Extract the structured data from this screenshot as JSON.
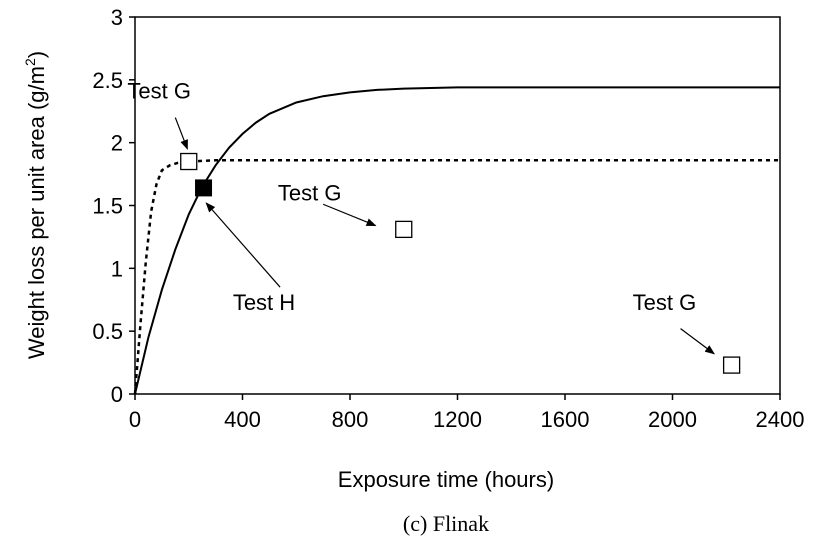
{
  "chart_data": {
    "type": "scatter",
    "caption": "(c) Flinak",
    "xlabel": "Exposure time (hours)",
    "ylabel": "Weight loss per unit area (g/m",
    "ylabel_sup": "2",
    "ylabel_end": ")",
    "xlim": [
      0,
      2400
    ],
    "ylim": [
      0,
      3
    ],
    "xticks": [
      0,
      400,
      800,
      1200,
      1600,
      2000,
      2400
    ],
    "yticks": [
      0,
      0.5,
      1,
      1.5,
      2,
      2.5,
      3
    ],
    "ytick_labels": [
      "0",
      "0.5",
      "1",
      "1.5",
      "2",
      "2.5",
      "3"
    ],
    "grid": false,
    "legend": "none",
    "series": [
      {
        "style": "solid-line",
        "points": [
          [
            0,
            0
          ],
          [
            50,
            0.45
          ],
          [
            100,
            0.83
          ],
          [
            150,
            1.15
          ],
          [
            200,
            1.43
          ],
          [
            250,
            1.65
          ],
          [
            300,
            1.82
          ],
          [
            350,
            1.96
          ],
          [
            400,
            2.07
          ],
          [
            450,
            2.16
          ],
          [
            500,
            2.23
          ],
          [
            600,
            2.32
          ],
          [
            700,
            2.37
          ],
          [
            800,
            2.4
          ],
          [
            900,
            2.42
          ],
          [
            1000,
            2.43
          ],
          [
            1200,
            2.44
          ],
          [
            1600,
            2.44
          ],
          [
            2000,
            2.44
          ],
          [
            2400,
            2.44
          ]
        ]
      },
      {
        "style": "dashed-line",
        "points": [
          [
            0,
            0
          ],
          [
            20,
            0.55
          ],
          [
            40,
            1.05
          ],
          [
            60,
            1.45
          ],
          [
            80,
            1.67
          ],
          [
            100,
            1.78
          ],
          [
            130,
            1.82
          ],
          [
            160,
            1.84
          ],
          [
            200,
            1.85
          ],
          [
            300,
            1.86
          ],
          [
            2400,
            1.86
          ]
        ]
      },
      {
        "style": "open-square-markers",
        "points": [
          [
            200,
            1.85
          ],
          [
            1000,
            1.31
          ],
          [
            2220,
            0.23
          ]
        ]
      },
      {
        "style": "filled-square-markers",
        "points": [
          [
            255,
            1.64
          ]
        ]
      }
    ],
    "annotations": [
      {
        "text": "Test G",
        "label_at": [
          90,
          2.35
        ],
        "arrow_from": [
          150,
          2.2
        ],
        "arrow_to": [
          195,
          1.95
        ]
      },
      {
        "text": "Test G",
        "label_at": [
          650,
          1.54
        ],
        "arrow_from": [
          700,
          1.51
        ],
        "arrow_to": [
          895,
          1.34
        ]
      },
      {
        "text": "Test H",
        "label_at": [
          480,
          0.67
        ],
        "arrow_from": [
          540,
          0.85
        ],
        "arrow_to": [
          265,
          1.52
        ]
      },
      {
        "text": "Test G",
        "label_at": [
          1970,
          0.67
        ],
        "arrow_from": [
          2030,
          0.52
        ],
        "arrow_to": [
          2155,
          0.32
        ]
      }
    ]
  }
}
